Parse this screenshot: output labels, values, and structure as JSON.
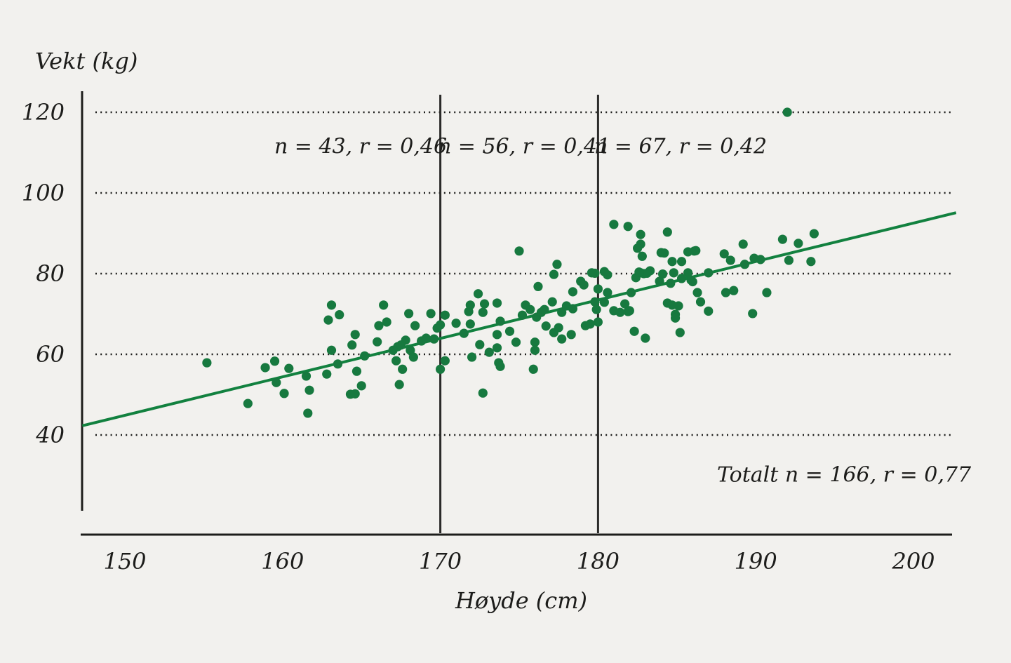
{
  "colors": {
    "background": "#f2f1ee",
    "text": "#1d1d1b",
    "axis": "#1d1d1b",
    "grid": "#1d1d1b",
    "divider": "#2b2b29",
    "trend": "#12813f",
    "dot": "#17793f"
  },
  "chart_data": {
    "type": "scatter",
    "y_axis_title": "Vekt (kg)",
    "x_axis_title": "Høyde (cm)",
    "x_ticks": [
      150,
      160,
      170,
      180,
      190,
      200
    ],
    "y_ticks": [
      40,
      60,
      80,
      100,
      120
    ],
    "x_range": [
      147.2,
      202.5
    ],
    "y_range": [
      15,
      125
    ],
    "grid": "horizontal dotted lines at y ticks",
    "vertical_dividers": [
      170,
      180
    ],
    "segment_annotations": [
      {
        "text": "n = 43, r = 0,46",
        "segment": "x < 170",
        "n": 43,
        "r": "0,46"
      },
      {
        "text": "n = 56, r = 0,41",
        "segment": "170–180",
        "n": 56,
        "r": "0,41"
      },
      {
        "text": "n = 67, r = 0,42",
        "segment": "x > 180",
        "n": 67,
        "r": "0,42"
      }
    ],
    "total_annotation": "Totalt n = 166, r = 0,77",
    "trend_line": {
      "x": [
        147.3,
        202.7
      ],
      "y": [
        42.3,
        95.1
      ]
    },
    "points": {
      "segment_1": [
        [
          155.2,
          57.9
        ],
        [
          157.8,
          47.8
        ],
        [
          158.9,
          56.7
        ],
        [
          159.5,
          58.3
        ],
        [
          159.6,
          53.0
        ],
        [
          160.1,
          50.3
        ],
        [
          160.4,
          56.5
        ],
        [
          161.5,
          54.6
        ],
        [
          161.7,
          51.1
        ],
        [
          161.6,
          45.4
        ],
        [
          162.8,
          55.1
        ],
        [
          162.9,
          68.5
        ],
        [
          163.1,
          72.2
        ],
        [
          163.1,
          61.0
        ],
        [
          163.5,
          57.6
        ],
        [
          163.6,
          69.8
        ],
        [
          164.3,
          50.1
        ],
        [
          164.6,
          50.2
        ],
        [
          164.4,
          62.3
        ],
        [
          164.6,
          64.9
        ],
        [
          164.7,
          55.8
        ],
        [
          165.0,
          52.2
        ],
        [
          165.2,
          59.6
        ],
        [
          166.0,
          63.1
        ],
        [
          166.1,
          67.1
        ],
        [
          166.4,
          72.2
        ],
        [
          166.6,
          68.0
        ],
        [
          167.0,
          61.0
        ],
        [
          167.2,
          58.4
        ],
        [
          167.3,
          61.9
        ],
        [
          167.4,
          52.5
        ],
        [
          167.6,
          56.3
        ],
        [
          167.8,
          63.5
        ],
        [
          168.0,
          70.1
        ],
        [
          168.1,
          61.0
        ],
        [
          168.3,
          59.3
        ],
        [
          168.4,
          67.1
        ],
        [
          168.8,
          63.3
        ],
        [
          169.1,
          64.0
        ],
        [
          169.4,
          70.1
        ],
        [
          169.6,
          63.8
        ],
        [
          167.5,
          62.3
        ],
        [
          169.8,
          66.5
        ]
      ],
      "segment_2": [
        [
          170.0,
          67.3
        ],
        [
          170.3,
          69.7
        ],
        [
          170.0,
          56.3
        ],
        [
          170.3,
          58.4
        ],
        [
          171.0,
          67.7
        ],
        [
          171.5,
          65.2
        ],
        [
          171.9,
          67.5
        ],
        [
          171.9,
          72.2
        ],
        [
          171.8,
          70.6
        ],
        [
          172.0,
          59.3
        ],
        [
          172.4,
          75.0
        ],
        [
          172.8,
          72.5
        ],
        [
          172.7,
          70.4
        ],
        [
          172.5,
          62.4
        ],
        [
          172.7,
          50.4
        ],
        [
          173.1,
          60.5
        ],
        [
          173.6,
          61.6
        ],
        [
          173.6,
          72.7
        ],
        [
          173.6,
          64.9
        ],
        [
          173.7,
          57.9
        ],
        [
          173.8,
          57.0
        ],
        [
          173.8,
          68.2
        ],
        [
          174.4,
          65.7
        ],
        [
          174.8,
          63.0
        ],
        [
          175.0,
          85.6
        ],
        [
          175.2,
          69.7
        ],
        [
          175.4,
          72.2
        ],
        [
          175.7,
          71.1
        ],
        [
          175.9,
          56.3
        ],
        [
          176.0,
          63.0
        ],
        [
          176.0,
          61.0
        ],
        [
          176.1,
          69.2
        ],
        [
          176.4,
          70.4
        ],
        [
          176.2,
          76.8
        ],
        [
          176.6,
          71.1
        ],
        [
          176.7,
          67.0
        ],
        [
          177.1,
          73.0
        ],
        [
          177.2,
          65.4
        ],
        [
          177.2,
          79.8
        ],
        [
          177.4,
          82.3
        ],
        [
          177.5,
          66.6
        ],
        [
          177.7,
          70.4
        ],
        [
          177.7,
          63.8
        ],
        [
          178.0,
          72.0
        ],
        [
          178.3,
          64.9
        ],
        [
          178.4,
          71.3
        ],
        [
          178.4,
          75.5
        ],
        [
          178.9,
          78.1
        ],
        [
          179.1,
          77.2
        ],
        [
          179.2,
          67.1
        ],
        [
          179.5,
          67.5
        ],
        [
          179.6,
          80.2
        ],
        [
          179.8,
          80.1
        ],
        [
          179.8,
          73.0
        ],
        [
          179.9,
          71.1
        ],
        [
          180.0,
          68.0
        ]
      ],
      "segment_3": [
        [
          180.0,
          76.2
        ],
        [
          180.4,
          80.5
        ],
        [
          180.6,
          79.7
        ],
        [
          180.4,
          72.9
        ],
        [
          180.6,
          75.3
        ],
        [
          181.0,
          92.2
        ],
        [
          181.9,
          91.7
        ],
        [
          182.7,
          89.7
        ],
        [
          184.4,
          90.3
        ],
        [
          182.7,
          87.3
        ],
        [
          182.5,
          86.3
        ],
        [
          182.8,
          84.3
        ],
        [
          184.0,
          85.2
        ],
        [
          185.7,
          85.4
        ],
        [
          186.2,
          85.7
        ],
        [
          184.7,
          83.0
        ],
        [
          185.3,
          83.0
        ],
        [
          184.8,
          80.2
        ],
        [
          185.7,
          80.2
        ],
        [
          185.9,
          78.4
        ],
        [
          185.3,
          78.8
        ],
        [
          182.7,
          80.2
        ],
        [
          182.9,
          80.0
        ],
        [
          183.3,
          80.7
        ],
        [
          182.4,
          79.0
        ],
        [
          183.9,
          78.1
        ],
        [
          184.6,
          77.6
        ],
        [
          186.0,
          78.0
        ],
        [
          187.0,
          80.2
        ],
        [
          188.0,
          84.9
        ],
        [
          188.4,
          83.3
        ],
        [
          189.2,
          87.3
        ],
        [
          189.3,
          82.3
        ],
        [
          189.9,
          83.8
        ],
        [
          191.7,
          88.5
        ],
        [
          192.7,
          87.5
        ],
        [
          192.1,
          83.3
        ],
        [
          193.5,
          83.0
        ],
        [
          193.7,
          89.9
        ],
        [
          186.3,
          75.3
        ],
        [
          186.5,
          73.0
        ],
        [
          187.0,
          70.7
        ],
        [
          188.1,
          75.3
        ],
        [
          188.6,
          75.8
        ],
        [
          189.8,
          70.1
        ],
        [
          190.7,
          75.3
        ],
        [
          181.0,
          70.8
        ],
        [
          181.4,
          70.4
        ],
        [
          181.9,
          70.6
        ],
        [
          181.7,
          72.5
        ],
        [
          182.0,
          70.8
        ],
        [
          182.1,
          75.3
        ],
        [
          184.4,
          72.7
        ],
        [
          184.7,
          72.2
        ],
        [
          185.1,
          72.0
        ],
        [
          184.9,
          69.9
        ],
        [
          184.9,
          69.0
        ],
        [
          182.3,
          65.7
        ],
        [
          183.0,
          64.0
        ],
        [
          185.2,
          65.4
        ],
        [
          192.0,
          120.0
        ],
        [
          183.1,
          80.1
        ],
        [
          184.1,
          79.9
        ],
        [
          182.6,
          80.4
        ],
        [
          184.2,
          85.1
        ],
        [
          186.1,
          85.6
        ],
        [
          190.3,
          83.5
        ]
      ]
    }
  }
}
